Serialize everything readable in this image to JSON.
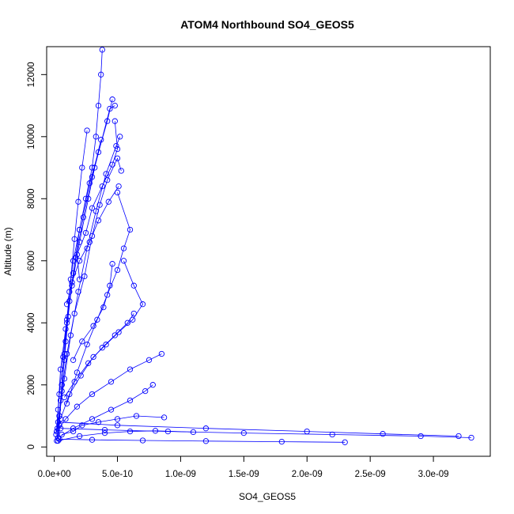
{
  "chart_data": {
    "type": "scatter",
    "title": "ATOM4 Northbound SO4_GEOS5",
    "xlabel": "SO4_GEOS5",
    "ylabel": "Altitude (m)",
    "xlim": [
      -6e-11,
      3.45e-09
    ],
    "ylim": [
      -300,
      12900
    ],
    "x_ticks": [
      0,
      5e-10,
      1e-09,
      1.5e-09,
      2e-09,
      2.5e-09,
      3e-09
    ],
    "x_tick_labels": [
      "0.0e+00",
      "5.0e-10",
      "1.0e-09",
      "1.5e-09",
      "2.0e-09",
      "2.5e-09",
      "3.0e-09"
    ],
    "y_ticks": [
      0,
      2000,
      4000,
      6000,
      8000,
      10000,
      12000
    ],
    "y_tick_labels": [
      "0",
      "2000",
      "4000",
      "6000",
      "8000",
      "10000",
      "12000"
    ],
    "grid": false,
    "legend": "none",
    "marker": "open-circle",
    "colors": {
      "series": "#0000ff",
      "axis": "#000000"
    },
    "series": [
      {
        "x": [
          2e-11,
          4e-11,
          6e-11,
          8e-11,
          1e-10,
          1.2e-10,
          1.5e-10,
          2e-10,
          2.5e-10,
          3e-10,
          3.3e-10,
          3.5e-10,
          3.7e-10,
          3.8e-10
        ],
        "y": [
          200,
          1000,
          2000,
          3000,
          4000,
          5000,
          6000,
          7000,
          8000,
          9000,
          10000,
          11000,
          12000,
          12800
        ]
      },
      {
        "x": [
          3e-11,
          5e-11,
          8e-11,
          1.1e-10,
          1.5e-10,
          2e-10,
          2.8e-10,
          3.5e-10,
          4.2e-10,
          4.6e-10
        ],
        "y": [
          300,
          1500,
          2800,
          4200,
          5600,
          7000,
          8500,
          9500,
          10500,
          11200
        ]
      },
      {
        "x": [
          1.5e-11,
          3e-11,
          5e-11,
          9e-11,
          1.4e-10,
          2e-10,
          2.7e-10,
          3.2e-10,
          4.4e-10,
          4.8e-10
        ],
        "y": [
          400,
          1200,
          2500,
          3800,
          5200,
          6600,
          8000,
          9000,
          10900,
          11000
        ]
      },
      {
        "x": [
          2.5e-11,
          6e-11,
          1e-10,
          1.6e-10,
          2.4e-10,
          3e-10,
          3.6e-10,
          4.2e-10,
          5e-10,
          5.3e-10
        ],
        "y": [
          600,
          1800,
          3000,
          4300,
          5500,
          6800,
          7800,
          8600,
          9300,
          8900
        ]
      },
      {
        "x": [
          4e-11,
          8e-11,
          1.3e-10,
          1.9e-10,
          2.6e-10,
          3.3e-10,
          4.1e-10,
          4.9e-10,
          5.2e-10
        ],
        "y": [
          1000,
          2200,
          3600,
          5000,
          6400,
          7600,
          8800,
          9700,
          10000
        ]
      },
      {
        "x": [
          1e-10,
          1.8e-10,
          2.6e-10,
          3.4e-10,
          4.2e-10,
          5e-10,
          5.5e-10,
          6e-10,
          5e-10
        ],
        "y": [
          1400,
          2400,
          3300,
          4100,
          4900,
          5700,
          6400,
          7000,
          8200
        ]
      },
      {
        "x": [
          5e-11,
          1.2e-10,
          2.1e-10,
          3.1e-10,
          4.1e-10,
          5.1e-10,
          6.2e-10,
          7e-10,
          6.3e-10,
          5.5e-10
        ],
        "y": [
          900,
          1700,
          2300,
          2900,
          3300,
          3700,
          4100,
          4600,
          5200,
          6000
        ]
      },
      {
        "x": [
          2e-11,
          9e-11,
          1.8e-10,
          3e-10,
          4.5e-10,
          6e-10,
          7.5e-10,
          8.5e-10
        ],
        "y": [
          500,
          900,
          1300,
          1700,
          2100,
          2500,
          2800,
          3000
        ]
      },
      {
        "x": [
          3e-11,
          1.5e-10,
          3e-10,
          4.5e-10,
          6e-10,
          7.2e-10,
          7.8e-10
        ],
        "y": [
          300,
          600,
          900,
          1200,
          1500,
          1800,
          2000
        ]
      },
      {
        "x": [
          3e-11,
          2e-10,
          4e-10,
          6e-10,
          8e-10,
          1.1e-09
        ],
        "y": [
          200,
          350,
          450,
          500,
          520,
          480
        ]
      },
      {
        "x": [
          4e-11,
          3e-10,
          7e-10,
          1.2e-09,
          1.8e-09,
          2.3e-09
        ],
        "y": [
          250,
          230,
          210,
          190,
          170,
          150
        ]
      },
      {
        "x": [
          5e-11,
          4e-10,
          9e-10,
          1.5e-09,
          2.2e-09,
          2.9e-09,
          3.3e-09
        ],
        "y": [
          600,
          550,
          500,
          450,
          400,
          350,
          300
        ]
      },
      {
        "x": [
          3e-11,
          5e-10,
          1.2e-09,
          2e-09,
          2.6e-09,
          3.2e-09
        ],
        "y": [
          800,
          700,
          600,
          500,
          420,
          350
        ]
      },
      {
        "x": [
          6e-11,
          1.5e-10,
          2.2e-10,
          3.5e-10,
          5e-10,
          6.5e-10,
          8.7e-10
        ],
        "y": [
          400,
          500,
          700,
          800,
          900,
          1000,
          950
        ]
      },
      {
        "x": [
          2e-10,
          1.8e-10,
          2.5e-10,
          3e-10,
          3.8e-10,
          4.6e-10,
          5e-10,
          4.8e-10
        ],
        "y": [
          5400,
          6200,
          6900,
          7700,
          8400,
          9100,
          9600,
          10500
        ]
      },
      {
        "x": [
          1.5e-10,
          2.2e-10,
          3.1e-10,
          3.9e-10,
          4.4e-10,
          4.6e-10
        ],
        "y": [
          2800,
          3400,
          3900,
          4500,
          5200,
          5900
        ]
      },
      {
        "x": [
          8e-11,
          1.6e-10,
          2.7e-10,
          3.8e-10,
          4.8e-10,
          5.8e-10,
          6.3e-10
        ],
        "y": [
          1600,
          2100,
          2700,
          3200,
          3600,
          4000,
          4300
        ]
      },
      {
        "x": [
          4e-11,
          6e-11,
          9e-11,
          1.2e-10,
          1.7e-10,
          2.3e-10,
          3e-10,
          3.7e-10
        ],
        "y": [
          700,
          2000,
          3400,
          4700,
          6100,
          7400,
          8700,
          9900
        ]
      },
      {
        "x": [
          2e-11,
          4e-11,
          7e-11,
          1e-10,
          1.3e-10,
          1.6e-10,
          1.9e-10,
          2.2e-10,
          2.6e-10
        ],
        "y": [
          500,
          1700,
          2900,
          4100,
          5400,
          6700,
          7900,
          9000,
          10200
        ]
      },
      {
        "x": [
          1e-10,
          1.4e-10,
          2e-10,
          2.8e-10,
          3.5e-10,
          4.3e-10,
          5.1e-10
        ],
        "y": [
          4600,
          5300,
          6000,
          6600,
          7300,
          7900,
          8400
        ]
      }
    ]
  }
}
